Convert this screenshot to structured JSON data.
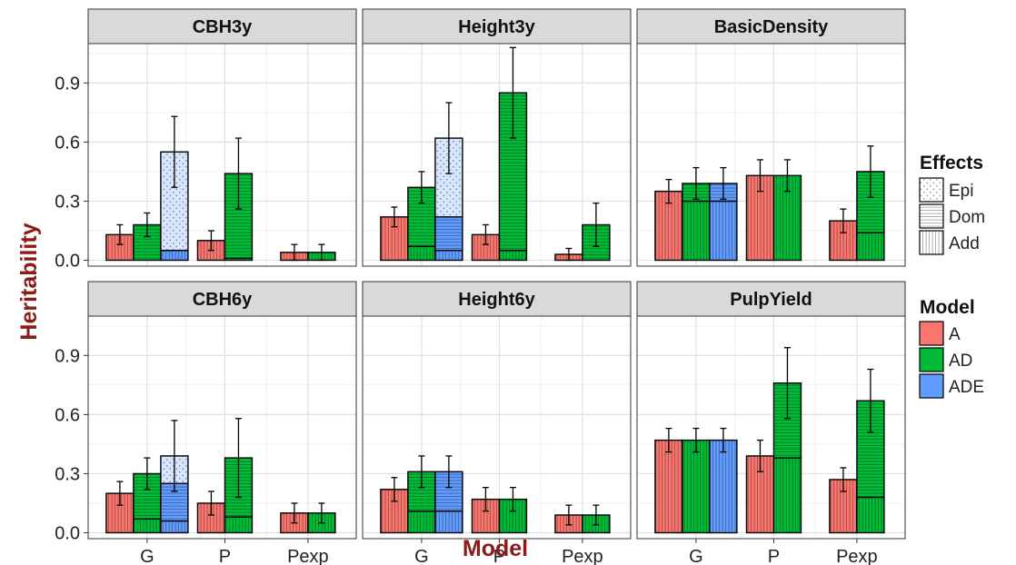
{
  "chart_data": {
    "type": "bar",
    "stacked": true,
    "ylabel": "Heritability",
    "xlabel": "Model",
    "ylim": [
      -0.03,
      1.1
    ],
    "yticks": [
      0.0,
      0.3,
      0.6,
      0.9
    ],
    "ytick_labels": [
      "0.0",
      "0.3",
      "0.6",
      "0.9"
    ],
    "categories": [
      "G",
      "P",
      "Pexp"
    ],
    "grid": true,
    "layout": "facet-grid-2x3",
    "colors": {
      "A": "#F8766D",
      "AD": "#00BA38",
      "ADE": "#619CFF"
    },
    "legends": [
      {
        "title": "Effects",
        "items": [
          "Epi",
          "Dom",
          "Add"
        ],
        "position": "right"
      },
      {
        "title": "Model",
        "items": [
          "A",
          "AD",
          "ADE"
        ],
        "position": "right"
      }
    ],
    "facets": [
      {
        "title": "CBH3y",
        "bars": [
          {
            "cat": "G",
            "model": "A",
            "add": 0.13,
            "dom": 0,
            "epi": 0,
            "err": 0.05
          },
          {
            "cat": "G",
            "model": "AD",
            "add": 0.0,
            "dom": 0.18,
            "epi": 0,
            "err": 0.06
          },
          {
            "cat": "G",
            "model": "ADE",
            "add": 0.05,
            "dom": 0,
            "epi": 0.5,
            "err": 0.18
          },
          {
            "cat": "P",
            "model": "A",
            "add": 0.1,
            "dom": 0,
            "epi": 0,
            "err": 0.05
          },
          {
            "cat": "P",
            "model": "AD",
            "add": 0.01,
            "dom": 0.43,
            "epi": 0,
            "err": 0.18
          },
          {
            "cat": "Pexp",
            "model": "A",
            "add": 0.04,
            "dom": 0,
            "epi": 0,
            "err": 0.04
          },
          {
            "cat": "Pexp",
            "model": "AD",
            "add": 0.04,
            "dom": 0.0,
            "epi": 0,
            "err": 0.04
          }
        ]
      },
      {
        "title": "Height3y",
        "bars": [
          {
            "cat": "G",
            "model": "A",
            "add": 0.22,
            "dom": 0,
            "epi": 0,
            "err": 0.05
          },
          {
            "cat": "G",
            "model": "AD",
            "add": 0.07,
            "dom": 0.3,
            "epi": 0,
            "err": 0.08
          },
          {
            "cat": "G",
            "model": "ADE",
            "add": 0.05,
            "dom": 0.17,
            "epi": 0.4,
            "err": 0.18
          },
          {
            "cat": "P",
            "model": "A",
            "add": 0.13,
            "dom": 0,
            "epi": 0,
            "err": 0.05
          },
          {
            "cat": "P",
            "model": "AD",
            "add": 0.05,
            "dom": 0.8,
            "epi": 0,
            "err": 0.23
          },
          {
            "cat": "Pexp",
            "model": "A",
            "add": 0.03,
            "dom": 0,
            "epi": 0,
            "err": 0.03
          },
          {
            "cat": "Pexp",
            "model": "AD",
            "add": 0.0,
            "dom": 0.18,
            "epi": 0,
            "err": 0.11
          }
        ]
      },
      {
        "title": "BasicDensity",
        "bars": [
          {
            "cat": "G",
            "model": "A",
            "add": 0.35,
            "dom": 0,
            "epi": 0,
            "err": 0.06
          },
          {
            "cat": "G",
            "model": "AD",
            "add": 0.3,
            "dom": 0.09,
            "epi": 0,
            "err": 0.08
          },
          {
            "cat": "G",
            "model": "ADE",
            "add": 0.3,
            "dom": 0.09,
            "epi": 0.0,
            "err": 0.08
          },
          {
            "cat": "P",
            "model": "A",
            "add": 0.43,
            "dom": 0,
            "epi": 0,
            "err": 0.08
          },
          {
            "cat": "P",
            "model": "AD",
            "add": 0.43,
            "dom": 0.0,
            "epi": 0,
            "err": 0.08
          },
          {
            "cat": "Pexp",
            "model": "A",
            "add": 0.2,
            "dom": 0,
            "epi": 0,
            "err": 0.06
          },
          {
            "cat": "Pexp",
            "model": "AD",
            "add": 0.14,
            "dom": 0.31,
            "epi": 0,
            "err": 0.13
          }
        ]
      },
      {
        "title": "CBH6y",
        "bars": [
          {
            "cat": "G",
            "model": "A",
            "add": 0.2,
            "dom": 0,
            "epi": 0,
            "err": 0.06
          },
          {
            "cat": "G",
            "model": "AD",
            "add": 0.07,
            "dom": 0.23,
            "epi": 0,
            "err": 0.08
          },
          {
            "cat": "G",
            "model": "ADE",
            "add": 0.06,
            "dom": 0.19,
            "epi": 0.14,
            "err": 0.18
          },
          {
            "cat": "P",
            "model": "A",
            "add": 0.15,
            "dom": 0,
            "epi": 0,
            "err": 0.06
          },
          {
            "cat": "P",
            "model": "AD",
            "add": 0.08,
            "dom": 0.3,
            "epi": 0,
            "err": 0.2
          },
          {
            "cat": "Pexp",
            "model": "A",
            "add": 0.1,
            "dom": 0,
            "epi": 0,
            "err": 0.05
          },
          {
            "cat": "Pexp",
            "model": "AD",
            "add": 0.1,
            "dom": 0.0,
            "epi": 0,
            "err": 0.05
          }
        ]
      },
      {
        "title": "Height6y",
        "bars": [
          {
            "cat": "G",
            "model": "A",
            "add": 0.22,
            "dom": 0,
            "epi": 0,
            "err": 0.06
          },
          {
            "cat": "G",
            "model": "AD",
            "add": 0.11,
            "dom": 0.2,
            "epi": 0,
            "err": 0.08
          },
          {
            "cat": "G",
            "model": "ADE",
            "add": 0.11,
            "dom": 0.2,
            "epi": 0.0,
            "err": 0.08
          },
          {
            "cat": "P",
            "model": "A",
            "add": 0.17,
            "dom": 0,
            "epi": 0,
            "err": 0.06
          },
          {
            "cat": "P",
            "model": "AD",
            "add": 0.17,
            "dom": 0.0,
            "epi": 0,
            "err": 0.06
          },
          {
            "cat": "Pexp",
            "model": "A",
            "add": 0.09,
            "dom": 0,
            "epi": 0,
            "err": 0.05
          },
          {
            "cat": "Pexp",
            "model": "AD",
            "add": 0.09,
            "dom": 0.0,
            "epi": 0,
            "err": 0.05
          }
        ]
      },
      {
        "title": "PulpYield",
        "bars": [
          {
            "cat": "G",
            "model": "A",
            "add": 0.47,
            "dom": 0,
            "epi": 0,
            "err": 0.06
          },
          {
            "cat": "G",
            "model": "AD",
            "add": 0.47,
            "dom": 0.0,
            "epi": 0,
            "err": 0.06
          },
          {
            "cat": "G",
            "model": "ADE",
            "add": 0.47,
            "dom": 0.0,
            "epi": 0.0,
            "err": 0.06
          },
          {
            "cat": "P",
            "model": "A",
            "add": 0.39,
            "dom": 0,
            "epi": 0,
            "err": 0.08
          },
          {
            "cat": "P",
            "model": "AD",
            "add": 0.38,
            "dom": 0.38,
            "epi": 0,
            "err": 0.18
          },
          {
            "cat": "Pexp",
            "model": "A",
            "add": 0.27,
            "dom": 0,
            "epi": 0,
            "err": 0.06
          },
          {
            "cat": "Pexp",
            "model": "AD",
            "add": 0.18,
            "dom": 0.49,
            "epi": 0,
            "err": 0.16
          }
        ]
      }
    ]
  }
}
